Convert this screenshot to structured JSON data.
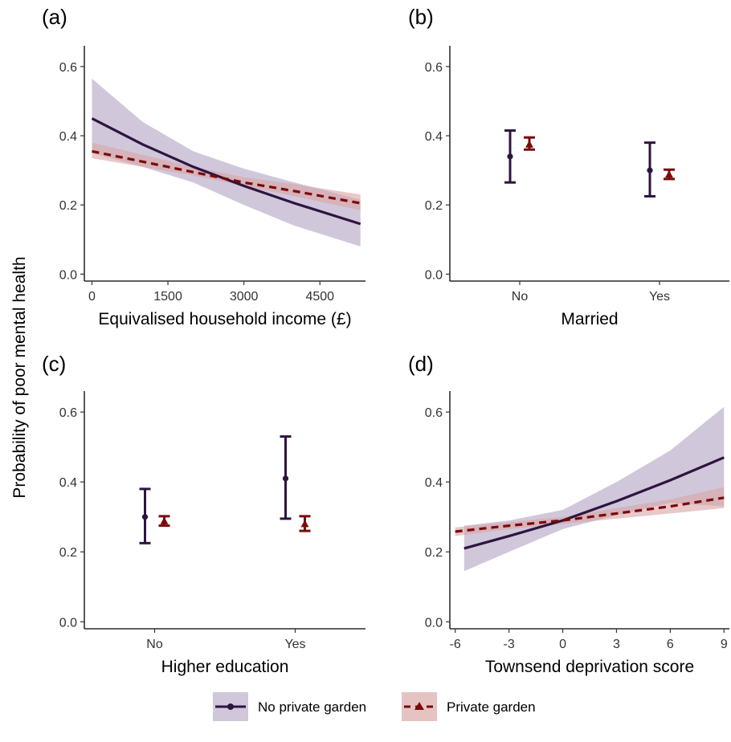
{
  "ylabel": "Probability of poor mental health",
  "colors": {
    "no_garden": "#2d1540",
    "garden": "#7a0a0a",
    "no_garden_band": "#b9a9c7",
    "garden_band": "#d9a3a3"
  },
  "legend": {
    "no_garden": "No private garden",
    "garden": "Private garden"
  },
  "chart_data": [
    {
      "panel": "(a)",
      "type": "line",
      "xlabel": "Equivalised household income (£)",
      "xlim": [
        -150,
        5400
      ],
      "ylim": [
        -0.02,
        0.66
      ],
      "xticks": [
        0,
        1500,
        3000,
        4500
      ],
      "xticklabels": [
        "0",
        "1500",
        "3000",
        "4500"
      ],
      "yticks": [
        0.0,
        0.2,
        0.4,
        0.6
      ],
      "yticklabels": [
        "0.0",
        "0.2",
        "0.4",
        "0.6"
      ],
      "series": [
        {
          "name": "No private garden",
          "key": "no_garden",
          "x": [
            0,
            1000,
            2000,
            3000,
            4000,
            5300
          ],
          "y": [
            0.45,
            0.375,
            0.31,
            0.255,
            0.205,
            0.145
          ],
          "lower": [
            0.35,
            0.31,
            0.265,
            0.2,
            0.14,
            0.08
          ],
          "upper": [
            0.565,
            0.44,
            0.355,
            0.305,
            0.265,
            0.215
          ]
        },
        {
          "name": "Private garden",
          "key": "garden",
          "x": [
            0,
            1000,
            2000,
            3000,
            4000,
            5300
          ],
          "y": [
            0.355,
            0.325,
            0.295,
            0.265,
            0.24,
            0.205
          ],
          "lower": [
            0.335,
            0.31,
            0.285,
            0.255,
            0.225,
            0.185
          ],
          "upper": [
            0.38,
            0.345,
            0.31,
            0.28,
            0.26,
            0.23
          ]
        }
      ]
    },
    {
      "panel": "(b)",
      "type": "errorbar",
      "xlabel": "Married",
      "categories": [
        "No",
        "Yes"
      ],
      "ylim": [
        -0.02,
        0.66
      ],
      "yticks": [
        0.0,
        0.2,
        0.4,
        0.6
      ],
      "yticklabels": [
        "0.0",
        "0.2",
        "0.4",
        "0.6"
      ],
      "series": [
        {
          "name": "No private garden",
          "key": "no_garden",
          "marker": "circle",
          "values": [
            0.34,
            0.3
          ],
          "lower": [
            0.265,
            0.225
          ],
          "upper": [
            0.415,
            0.38
          ]
        },
        {
          "name": "Private garden",
          "key": "garden",
          "marker": "triangle",
          "values": [
            0.375,
            0.288
          ],
          "lower": [
            0.36,
            0.275
          ],
          "upper": [
            0.395,
            0.302
          ]
        }
      ]
    },
    {
      "panel": "(c)",
      "type": "errorbar",
      "xlabel": "Higher education",
      "categories": [
        "No",
        "Yes"
      ],
      "ylim": [
        -0.02,
        0.66
      ],
      "yticks": [
        0.0,
        0.2,
        0.4,
        0.6
      ],
      "yticklabels": [
        "0.0",
        "0.2",
        "0.4",
        "0.6"
      ],
      "series": [
        {
          "name": "No private garden",
          "key": "no_garden",
          "marker": "circle",
          "values": [
            0.3,
            0.41
          ],
          "lower": [
            0.225,
            0.295
          ],
          "upper": [
            0.38,
            0.53
          ]
        },
        {
          "name": "Private garden",
          "key": "garden",
          "marker": "triangle",
          "values": [
            0.288,
            0.28
          ],
          "lower": [
            0.275,
            0.26
          ],
          "upper": [
            0.302,
            0.302
          ]
        }
      ]
    },
    {
      "panel": "(d)",
      "type": "line",
      "xlabel": "Townsend deprivation score",
      "xlim": [
        -6.3,
        9.3
      ],
      "ylim": [
        -0.02,
        0.66
      ],
      "xticks": [
        -6,
        -3,
        0,
        3,
        6,
        9
      ],
      "xticklabels": [
        "-6",
        "-3",
        "0",
        "3",
        "6",
        "9"
      ],
      "yticks": [
        0.0,
        0.2,
        0.4,
        0.6
      ],
      "yticklabels": [
        "0.0",
        "0.2",
        "0.4",
        "0.6"
      ],
      "series": [
        {
          "name": "No private garden",
          "key": "no_garden",
          "x": [
            -5.5,
            -3,
            0,
            3,
            6,
            9
          ],
          "y": [
            0.21,
            0.245,
            0.29,
            0.345,
            0.405,
            0.47
          ],
          "lower": [
            0.145,
            0.2,
            0.265,
            0.305,
            0.34,
            0.33
          ],
          "upper": [
            0.275,
            0.29,
            0.32,
            0.4,
            0.49,
            0.615
          ]
        },
        {
          "name": "Private garden",
          "key": "garden",
          "x": [
            -6,
            -3,
            0,
            3,
            6,
            9
          ],
          "y": [
            0.258,
            0.275,
            0.29,
            0.31,
            0.33,
            0.355
          ],
          "lower": [
            0.245,
            0.265,
            0.28,
            0.295,
            0.31,
            0.325
          ],
          "upper": [
            0.27,
            0.285,
            0.3,
            0.325,
            0.35,
            0.385
          ]
        }
      ]
    }
  ]
}
